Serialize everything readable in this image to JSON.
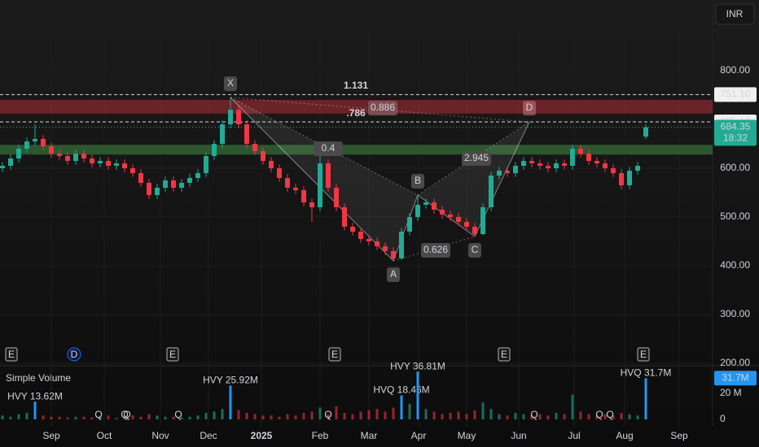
{
  "chart_data": {
    "type": "candlestick",
    "currency": "INR",
    "grid": true,
    "up_color": "#22ab94",
    "down_color": "#f23645",
    "xlim": [
      -0.3,
      87.2
    ],
    "xticks": [
      {
        "value": 6,
        "label": "Sep"
      },
      {
        "value": 12.5,
        "label": "Oct"
      },
      {
        "value": 19.4,
        "label": "Nov"
      },
      {
        "value": 25.3,
        "label": "Dec"
      },
      {
        "value": 31.8,
        "label": "2025"
      },
      {
        "value": 39,
        "label": "Feb"
      },
      {
        "value": 45,
        "label": "Mar"
      },
      {
        "value": 51.1,
        "label": "Apr"
      },
      {
        "value": 57,
        "label": "May"
      },
      {
        "value": 63.4,
        "label": "Jun"
      },
      {
        "value": 70.2,
        "label": "Jul"
      },
      {
        "value": 76.4,
        "label": "Aug"
      },
      {
        "value": 83.1,
        "label": "Sep"
      }
    ],
    "ylim": [
      195,
      945
    ],
    "yticks": [
      {
        "value": 800,
        "label": "800.00"
      },
      {
        "value": 600,
        "label": "600.00"
      },
      {
        "value": 500,
        "label": "500.00"
      },
      {
        "value": 400,
        "label": "400.00"
      },
      {
        "value": 300,
        "label": "300.00"
      },
      {
        "value": 200,
        "label": "200.00"
      }
    ],
    "open": [
      600,
      605,
      620,
      640,
      655,
      660,
      645,
      630,
      625,
      615,
      630,
      620,
      610,
      615,
      605,
      610,
      600,
      590,
      570,
      545,
      560,
      575,
      560,
      570,
      580,
      590,
      625,
      650,
      690,
      720,
      690,
      650,
      635,
      615,
      600,
      580,
      560,
      555,
      530,
      520,
      610,
      560,
      520,
      480,
      470,
      455,
      450,
      440,
      430,
      415,
      470,
      500,
      525,
      530,
      515,
      505,
      500,
      490,
      480,
      465,
      520,
      585,
      595,
      590,
      605,
      615,
      610,
      605,
      600,
      610,
      605,
      640,
      630,
      615,
      610,
      600,
      590,
      565,
      595,
      665
    ],
    "high": [
      613,
      628,
      648,
      663,
      690,
      668,
      653,
      638,
      633,
      638,
      638,
      628,
      623,
      623,
      618,
      618,
      608,
      598,
      578,
      568,
      583,
      583,
      578,
      588,
      598,
      633,
      658,
      698,
      745,
      728,
      698,
      658,
      643,
      623,
      608,
      588,
      568,
      563,
      538,
      625,
      618,
      568,
      528,
      488,
      478,
      463,
      458,
      448,
      438,
      478,
      508,
      545,
      538,
      538,
      523,
      513,
      508,
      498,
      488,
      528,
      593,
      603,
      603,
      613,
      623,
      623,
      618,
      613,
      618,
      618,
      648,
      648,
      638,
      623,
      618,
      608,
      598,
      603,
      613,
      690
    ],
    "low": [
      592,
      597,
      612,
      632,
      647,
      637,
      622,
      617,
      607,
      607,
      612,
      602,
      602,
      597,
      597,
      592,
      582,
      562,
      537,
      537,
      552,
      552,
      552,
      562,
      572,
      582,
      617,
      642,
      682,
      682,
      642,
      627,
      607,
      592,
      572,
      552,
      547,
      522,
      490,
      512,
      552,
      512,
      472,
      462,
      447,
      442,
      432,
      422,
      410,
      412,
      462,
      492,
      517,
      507,
      497,
      492,
      482,
      472,
      460,
      463,
      512,
      577,
      582,
      582,
      597,
      602,
      597,
      592,
      592,
      597,
      597,
      622,
      607,
      602,
      592,
      582,
      557,
      557,
      587,
      660
    ],
    "close": [
      605,
      620,
      640,
      655,
      660,
      645,
      630,
      625,
      615,
      630,
      620,
      610,
      615,
      605,
      610,
      600,
      590,
      570,
      545,
      560,
      575,
      560,
      570,
      580,
      590,
      625,
      650,
      690,
      720,
      690,
      650,
      635,
      615,
      600,
      580,
      560,
      555,
      530,
      520,
      610,
      560,
      520,
      480,
      470,
      455,
      450,
      440,
      430,
      415,
      470,
      500,
      525,
      530,
      515,
      505,
      500,
      490,
      480,
      465,
      520,
      585,
      595,
      590,
      605,
      615,
      610,
      605,
      600,
      610,
      605,
      640,
      630,
      615,
      610,
      600,
      590,
      565,
      595,
      605,
      684
    ],
    "zones": [
      {
        "low": 712,
        "high": 740,
        "color": "rgba(242,54,69,0.38)"
      },
      {
        "low": 628,
        "high": 648,
        "color": "rgba(76,175,80,0.42)"
      }
    ],
    "price_levels": [
      {
        "value": 751.1,
        "label": "751.10"
      },
      {
        "value": 695.1,
        "label": "695.10"
      }
    ],
    "current_price": {
      "value": 684.35,
      "label": "684.35",
      "countdown": "18:32"
    },
    "pattern": {
      "points": [
        {
          "label": "X",
          "bar": 28,
          "price": 745
        },
        {
          "label": "A",
          "bar": 48,
          "price": 410
        },
        {
          "label": "B",
          "bar": 51,
          "price": 545
        },
        {
          "label": "C",
          "bar": 58,
          "price": 460
        },
        {
          "label": "D",
          "bar": 64.7,
          "price": 695
        }
      ],
      "ratios": [
        {
          "value": 1.131,
          "label": "1.131"
        },
        {
          "value": 0.786,
          "label": ".786"
        },
        {
          "value": 0.886,
          "label": "0.886"
        },
        {
          "value": 0.4,
          "label": "0.4"
        },
        {
          "value": 2.945,
          "label": "2.945"
        },
        {
          "value": 0.626,
          "label": "0.626"
        }
      ]
    },
    "events": [
      {
        "label": "E",
        "bar": 1.1,
        "color": "#b2b5be"
      },
      {
        "label": "D",
        "bar": 8.8,
        "color": "#2962ff"
      },
      {
        "label": "E",
        "bar": 20.9,
        "color": "#b2b5be"
      },
      {
        "label": "E",
        "bar": 40.8,
        "color": "#b2b5be"
      },
      {
        "label": "E",
        "bar": 61.6,
        "color": "#b2b5be"
      },
      {
        "label": "E",
        "bar": 78.7,
        "color": "#b2b5be"
      }
    ],
    "volume": {
      "title": "Simple Volume",
      "ylim": [
        0,
        41.25
      ],
      "yticks": [
        {
          "value": 20,
          "label": "20 M"
        },
        0
      ],
      "highlight_color": "#2196f3",
      "values": [
        3,
        2,
        4,
        5,
        13.62,
        3,
        2,
        2,
        1.5,
        2,
        2,
        1.5,
        2,
        3,
        1,
        2,
        3,
        2,
        4,
        3,
        2,
        2,
        1.5,
        2,
        3,
        5,
        6,
        8,
        25.92,
        7,
        5,
        4,
        3,
        3,
        2,
        4,
        3,
        5,
        6,
        9,
        4,
        10,
        5,
        4,
        6,
        7,
        8,
        6,
        9,
        18.46,
        12,
        36.81,
        8,
        6,
        4,
        5,
        6,
        4,
        7,
        13,
        8,
        4,
        3,
        5,
        4,
        3,
        4,
        3,
        5,
        4,
        19,
        6,
        4,
        3,
        4,
        3,
        5,
        4,
        3,
        31.7
      ],
      "value_labels": [
        null,
        null,
        null,
        null,
        "HVY 13.62M",
        null,
        null,
        null,
        null,
        null,
        null,
        null,
        null,
        null,
        null,
        null,
        null,
        null,
        null,
        null,
        null,
        null,
        null,
        null,
        null,
        null,
        null,
        null,
        "HVY 25.92M",
        null,
        null,
        null,
        null,
        null,
        null,
        null,
        null,
        null,
        null,
        null,
        null,
        null,
        null,
        null,
        null,
        null,
        null,
        null,
        null,
        "HVQ 18.46M",
        null,
        "HVY 36.81M",
        null,
        null,
        null,
        null,
        null,
        null,
        null,
        null,
        null,
        null,
        null,
        null,
        null,
        null,
        null,
        null,
        null,
        null,
        null,
        null,
        null,
        null,
        null,
        null,
        null,
        null,
        null,
        "HVQ 31.7M"
      ],
      "last_label": "31.7M",
      "markers": [
        {
          "label": "Q",
          "bar": 11.8
        },
        {
          "label": "Q",
          "bar": 15
        },
        {
          "label": "Q",
          "bar": 15.3
        },
        {
          "label": "Q",
          "bar": 21.6
        },
        {
          "label": "Q",
          "bar": 40
        },
        {
          "label": "Q",
          "bar": 65.3
        },
        {
          "label": "Q",
          "bar": 73.3
        },
        {
          "label": "Q",
          "bar": 74.6
        }
      ]
    }
  }
}
